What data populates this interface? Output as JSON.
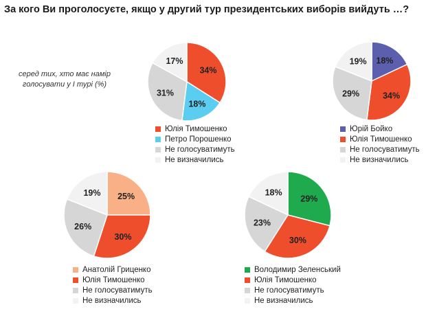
{
  "page": {
    "title": "За кого Ви проголосуєте, якщо у другий тур президентських виборів вийдуть …?",
    "note_line1": "серед тих, хто має намір",
    "note_line2": "голосувати у І турі (%)"
  },
  "colors": {
    "tymoshenko": "#ee4e2c",
    "poroshenko": "#5bcdf0",
    "boyko": "#5b5fae",
    "hrytsenko": "#fab086",
    "zelensky": "#1faa4e",
    "not_vote": "#d6d6d6",
    "undecided": "#f2f2f2"
  },
  "chart_data": [
    {
      "type": "pie",
      "slices": [
        {
          "label": "Юлія Тимошенко",
          "value": 34,
          "value_label": "34%",
          "color_key": "tymoshenko"
        },
        {
          "label": "Петро Порошенко",
          "value": 18,
          "value_label": "18%",
          "color_key": "poroshenko"
        },
        {
          "label": "Не голосуватимуть",
          "value": 31,
          "value_label": "31%",
          "color_key": "not_vote"
        },
        {
          "label": "Не визначились",
          "value": 17,
          "value_label": "17%",
          "color_key": "undecided"
        }
      ],
      "legend_placement": "below"
    },
    {
      "type": "pie",
      "slices": [
        {
          "label": "Юрій Бойко",
          "value": 18,
          "value_label": "18%",
          "color_key": "boyko"
        },
        {
          "label": "Юлія Тимошенко",
          "value": 34,
          "value_label": "34%",
          "color_key": "tymoshenko"
        },
        {
          "label": "Не голосуватимуть",
          "value": 29,
          "value_label": "29%",
          "color_key": "not_vote"
        },
        {
          "label": "Не визначились",
          "value": 19,
          "value_label": "19%",
          "color_key": "undecided"
        }
      ],
      "legend_placement": "below"
    },
    {
      "type": "pie",
      "slices": [
        {
          "label": "Анатолій Гриценко",
          "value": 25,
          "value_label": "25%",
          "color_key": "hrytsenko"
        },
        {
          "label": "Юлія Тимошенко",
          "value": 30,
          "value_label": "30%",
          "color_key": "tymoshenko"
        },
        {
          "label": "Не голосуватимуть",
          "value": 26,
          "value_label": "26%",
          "color_key": "not_vote"
        },
        {
          "label": "Не визначились",
          "value": 19,
          "value_label": "19%",
          "color_key": "undecided"
        }
      ],
      "legend_placement": "below"
    },
    {
      "type": "pie",
      "slices": [
        {
          "label": "Володимир Зеленський",
          "value": 29,
          "value_label": "29%",
          "color_key": "zelensky"
        },
        {
          "label": "Юлія Тимошенко",
          "value": 30,
          "value_label": "30%",
          "color_key": "tymoshenko"
        },
        {
          "label": "Не голосуватимуть",
          "value": 23,
          "value_label": "23%",
          "color_key": "not_vote"
        },
        {
          "label": "Не визначились",
          "value": 18,
          "value_label": "18%",
          "color_key": "undecided"
        }
      ],
      "legend_placement": "below"
    }
  ]
}
